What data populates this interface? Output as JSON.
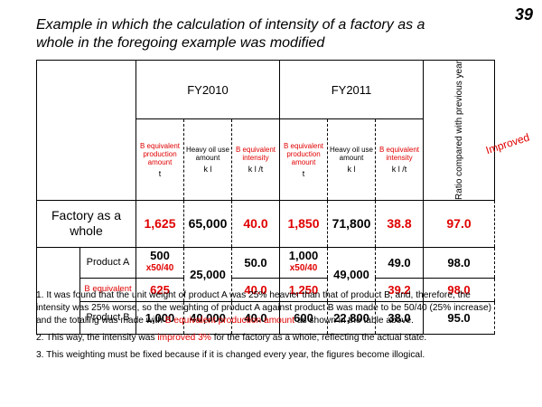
{
  "page_number": "39",
  "title": "Example in which the calculation of intensity of a factory as a whole in the foregoing example was modified",
  "table": {
    "fy2010": "FY2010",
    "fy2011": "FY2011",
    "ratio_header": "Ratio compared with previous year",
    "col_headers": {
      "b_prod": "B equivalent production amount",
      "heavy_oil": "Heavy oil use amount",
      "b_intensity": "B equivalent intensity"
    },
    "units": {
      "t": "t",
      "kl": "k l",
      "klt": "k l /t"
    },
    "rows": {
      "factory": {
        "label": "Factory as a whole",
        "b2010": "1,625",
        "oil2010": "65,000",
        "int2010": "40.0",
        "b2011": "1,850",
        "oil2011": "71,800",
        "int2011": "38.8",
        "ratio": "97.0",
        "note": "Improved"
      },
      "productA": {
        "label": "Product A",
        "amt2010": "500",
        "mult2010": "x50/40",
        "oil2010": "25,000",
        "int2010": "50.0",
        "amt2011": "1,000",
        "mult2011": "x50/40",
        "oil2011": "49,000",
        "int2011": "49.0",
        "ratio": "98.0"
      },
      "b_equivalent": {
        "label": "B equivalent",
        "b2010": "625",
        "int2010": "40.0",
        "b2011": "1,250",
        "int2011": "39.2",
        "ratio": "98.0"
      },
      "productB": {
        "label": "Product B",
        "b2010": "1,000",
        "oil2010": "40,000",
        "int2010": "40.0",
        "b2011": "600",
        "oil2011": "22,800",
        "int2011": "38.0",
        "ratio": "95.0"
      }
    }
  },
  "notes": {
    "n1_a": "1. It was found that the unit weight of product A was 25% heavier than that of product B, and, therefore, the intensity was 25% worse, so the weighting of product A against product B was made to be 50/40 (25% increase) and the totaling was made with ",
    "n1_red": "B equivalent production amount",
    "n1_b": " as shown in the table above.",
    "n2_a": "2. This way, the intensity was ",
    "n2_red": "improved 3%",
    "n2_b": " for the factory as a whole, reflecting the actual state.",
    "n3": "3. This weighting must be fixed because if it is changed every year, the figures become illogical."
  }
}
